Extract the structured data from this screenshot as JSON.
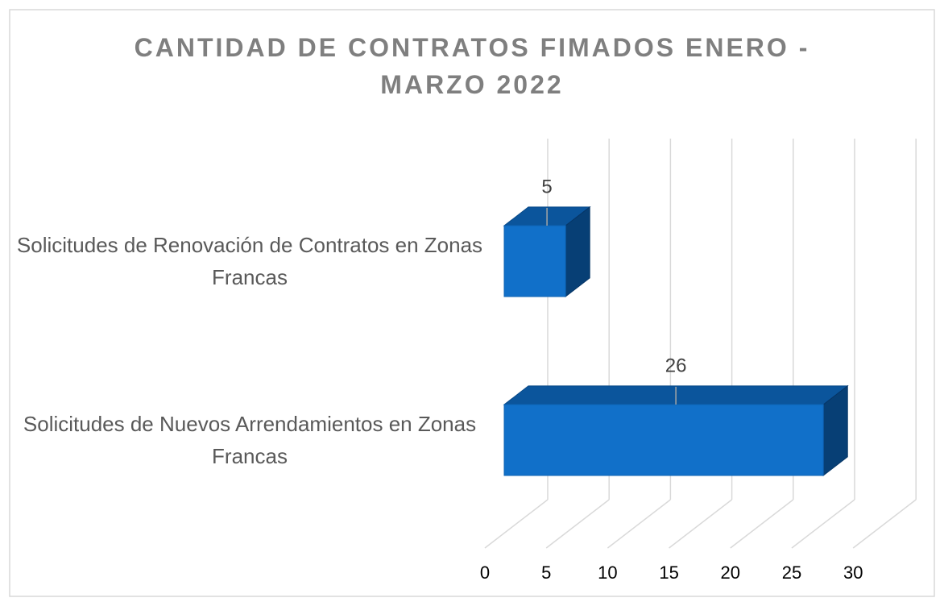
{
  "chart_data": {
    "type": "bar3d_horizontal",
    "title": "CANTIDAD DE CONTRATOS FIMADOS ENERO - MARZO 2022",
    "categories": [
      "Solicitudes de Renovación de Contratos en Zonas Francas",
      "Solicitudes de Nuevos Arrendamientos en Zonas Francas"
    ],
    "values": [
      5,
      26
    ],
    "color": "#1170c9",
    "xlim": [
      0,
      30
    ],
    "xticks": [
      0,
      5,
      10,
      15,
      20,
      25,
      30
    ],
    "grid": true
  }
}
